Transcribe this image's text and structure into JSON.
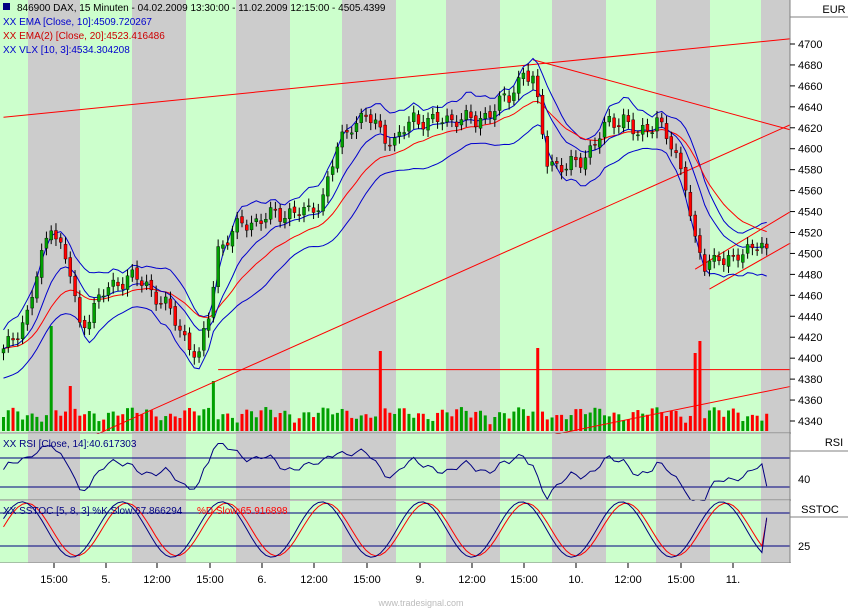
{
  "header": {
    "main": "846900  DAX, 15 Minuten - 04.02.2009 13:30:00 - 11.02.2009 12:15:00 - 4505.4399",
    "ema10": "XX EMA [Close, 10]:4509.720267",
    "ema20": "XX EMA(2) [Close, 20]:4523.416486",
    "vlx": "XX VLX [10, 3]:4534.304208",
    "rsi": "XX RSI [Close, 14]:40.617303",
    "sstoc_k": "XX SSTOC [5, 8, 3] %K Slow:67.866294",
    "sstoc_d": "%D Slow:65.916898"
  },
  "panels": {
    "price_unit": "EUR",
    "rsi_title": "RSI",
    "rsi_level": "40",
    "sstoc_title": "SSTOC",
    "sstoc_level": "25"
  },
  "watermark": "www.tradesignal.com",
  "colors": {
    "bull": "#00a000",
    "bear": "#ff0000",
    "ema10": "#0000cc",
    "ema20": "#ff0000",
    "vlx": "#0000cc",
    "band_green": "#ccffcc",
    "band_gray": "#cccccc",
    "trendline": "#ff0000"
  },
  "chart_data": {
    "type": "candlestick",
    "ylim": [
      4320,
      4720
    ],
    "yticks": [
      4340,
      4360,
      4380,
      4400,
      4420,
      4440,
      4460,
      4480,
      4500,
      4520,
      4540,
      4560,
      4580,
      4600,
      4620,
      4640,
      4660,
      4680,
      4700
    ],
    "xticks": [
      "15:00",
      "5.",
      "12:00",
      "15:00",
      "6.",
      "12:00",
      "15:00",
      "9.",
      "12:00",
      "15:00",
      "10.",
      "12:00",
      "15:00",
      "11."
    ],
    "anchors": [
      {
        "bar": 0,
        "close": 4405
      },
      {
        "bar": 5,
        "close": 4442
      },
      {
        "bar": 10,
        "close": 4531
      },
      {
        "bar": 14,
        "close": 4480
      },
      {
        "bar": 16,
        "close": 4430
      },
      {
        "bar": 22,
        "close": 4467
      },
      {
        "bar": 26,
        "close": 4478
      },
      {
        "bar": 30,
        "close": 4470
      },
      {
        "bar": 34,
        "close": 4450
      },
      {
        "bar": 38,
        "close": 4420
      },
      {
        "bar": 41,
        "close": 4400
      },
      {
        "bar": 43,
        "close": 4440
      },
      {
        "bar": 45,
        "close": 4505
      },
      {
        "bar": 50,
        "close": 4528
      },
      {
        "bar": 56,
        "close": 4535
      },
      {
        "bar": 60,
        "close": 4540
      },
      {
        "bar": 64,
        "close": 4538
      },
      {
        "bar": 67,
        "close": 4555
      },
      {
        "bar": 70,
        "close": 4600
      },
      {
        "bar": 73,
        "close": 4625
      },
      {
        "bar": 76,
        "close": 4630
      },
      {
        "bar": 79,
        "close": 4618
      },
      {
        "bar": 82,
        "close": 4605
      },
      {
        "bar": 86,
        "close": 4630
      },
      {
        "bar": 90,
        "close": 4625
      },
      {
        "bar": 95,
        "close": 4630
      },
      {
        "bar": 99,
        "close": 4625
      },
      {
        "bar": 103,
        "close": 4640
      },
      {
        "bar": 106,
        "close": 4648
      },
      {
        "bar": 109,
        "close": 4675
      },
      {
        "bar": 111,
        "close": 4665
      },
      {
        "bar": 114,
        "close": 4590
      },
      {
        "bar": 118,
        "close": 4580
      },
      {
        "bar": 121,
        "close": 4590
      },
      {
        "bar": 124,
        "close": 4605
      },
      {
        "bar": 127,
        "close": 4625
      },
      {
        "bar": 130,
        "close": 4630
      },
      {
        "bar": 133,
        "close": 4610
      },
      {
        "bar": 137,
        "close": 4630
      },
      {
        "bar": 140,
        "close": 4600
      },
      {
        "bar": 143,
        "close": 4570
      },
      {
        "bar": 145,
        "close": 4510
      },
      {
        "bar": 147,
        "close": 4485
      },
      {
        "bar": 150,
        "close": 4500
      },
      {
        "bar": 153,
        "close": 4490
      },
      {
        "bar": 156,
        "close": 4505
      },
      {
        "bar": 158,
        "close": 4512
      },
      {
        "bar": 160,
        "close": 4505
      }
    ],
    "volume_spikes": [
      {
        "bar": 10,
        "vol": 105
      },
      {
        "bar": 14,
        "vol": 45
      },
      {
        "bar": 44,
        "vol": 50
      },
      {
        "bar": 79,
        "vol": 80
      },
      {
        "bar": 112,
        "vol": 83
      },
      {
        "bar": 145,
        "vol": 78
      },
      {
        "bar": 146,
        "vol": 90
      }
    ],
    "trendlines": [
      {
        "from": [
          0,
          4630
        ],
        "to": [
          165,
          4705
        ]
      },
      {
        "from": [
          111,
          4685
        ],
        "to": [
          165,
          4618
        ]
      },
      {
        "from": [
          16,
          4320
        ],
        "to": [
          165,
          4623
        ]
      },
      {
        "from": [
          45,
          4389
        ],
        "to": [
          165,
          4389
        ]
      },
      {
        "from": [
          110,
          4322
        ],
        "to": [
          165,
          4373
        ]
      },
      {
        "from": [
          145,
          4485
        ],
        "to": [
          165,
          4540
        ]
      },
      {
        "from": [
          148,
          4466
        ],
        "to": [
          165,
          4510
        ]
      }
    ],
    "rsi": {
      "ylim": [
        20,
        80
      ],
      "levels": [
        40,
        60
      ],
      "last": 40.617303
    },
    "sstoc": {
      "ylim": [
        0,
        100
      ],
      "levels": [
        25,
        75
      ],
      "k_last": 67.866294,
      "d_last": 65.916898
    }
  }
}
